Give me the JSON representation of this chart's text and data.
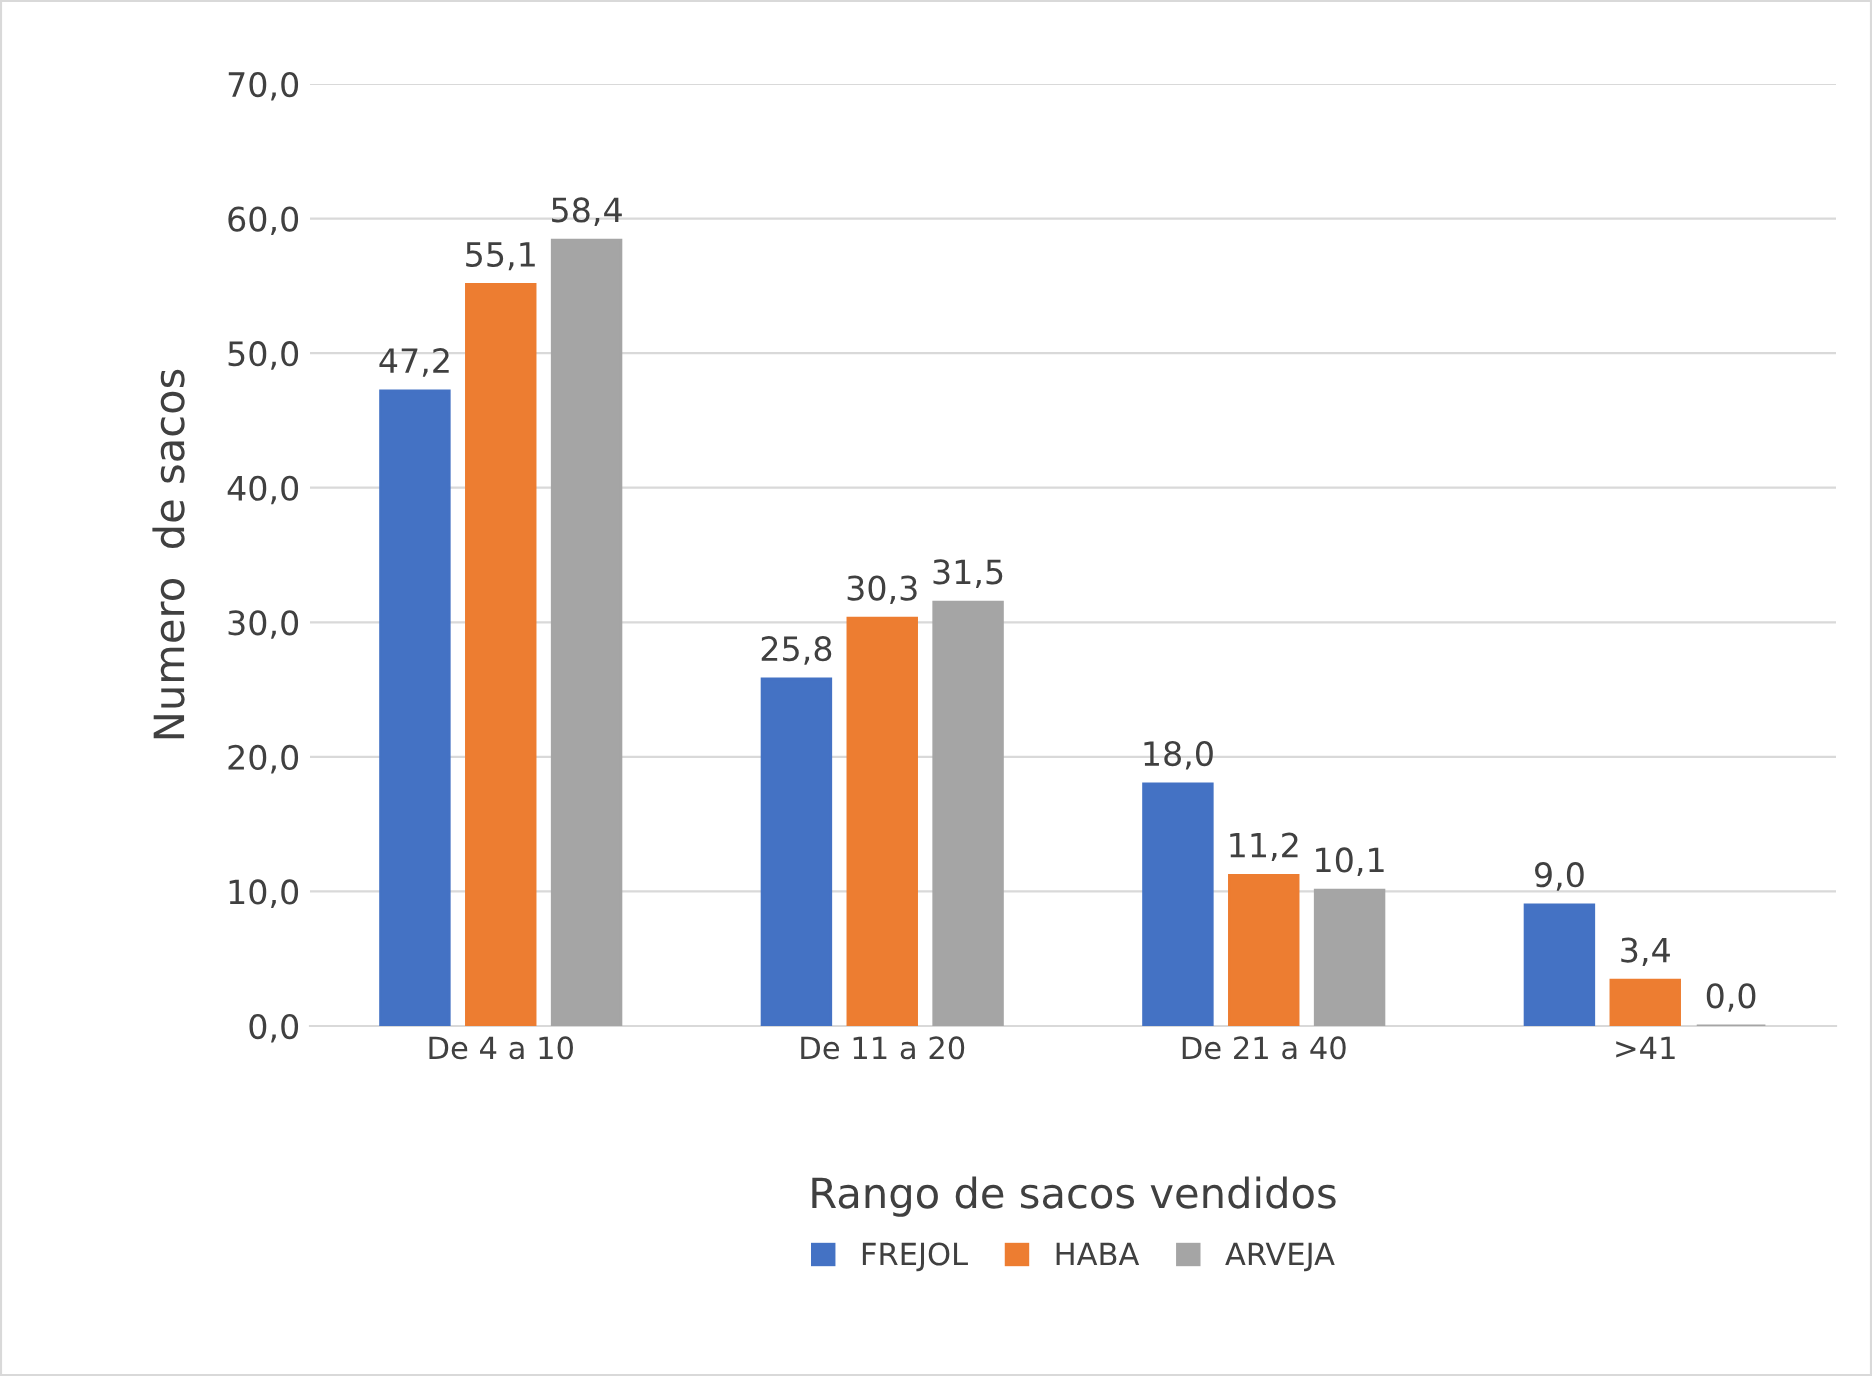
{
  "chart_data": {
    "type": "bar",
    "xlabel": "Rango de sacos vendidos",
    "ylabel": "Numero  de sacos",
    "categories": [
      "De 4 a 10",
      "De 11 a 20",
      "De 21 a 40",
      ">41"
    ],
    "series": [
      {
        "name": "FREJOL",
        "color": "#4472c4",
        "values": [
          47.2,
          25.8,
          18.0,
          9.0
        ],
        "value_labels": [
          "47,2",
          "25,8",
          "18,0",
          "9,0"
        ]
      },
      {
        "name": "HABA",
        "color": "#ed7d31",
        "values": [
          55.1,
          30.3,
          11.2,
          3.4
        ],
        "value_labels": [
          "55,1",
          "30,3",
          "11,2",
          "3,4"
        ]
      },
      {
        "name": "ARVEJA",
        "color": "#a5a5a5",
        "values": [
          58.4,
          31.5,
          10.1,
          0.0
        ],
        "value_labels": [
          "58,4",
          "31,5",
          "10,1",
          "0,0"
        ]
      }
    ],
    "ylim": [
      0,
      70
    ],
    "yticks": [
      {
        "value": 0,
        "label": "0,0"
      },
      {
        "value": 10,
        "label": "10,0"
      },
      {
        "value": 20,
        "label": "20,0"
      },
      {
        "value": 30,
        "label": "30,0"
      },
      {
        "value": 40,
        "label": "40,0"
      },
      {
        "value": 50,
        "label": "50,0"
      },
      {
        "value": 60,
        "label": "60,0"
      },
      {
        "value": 70,
        "label": "70,0"
      }
    ],
    "grid": "y",
    "legend": "bottom"
  }
}
